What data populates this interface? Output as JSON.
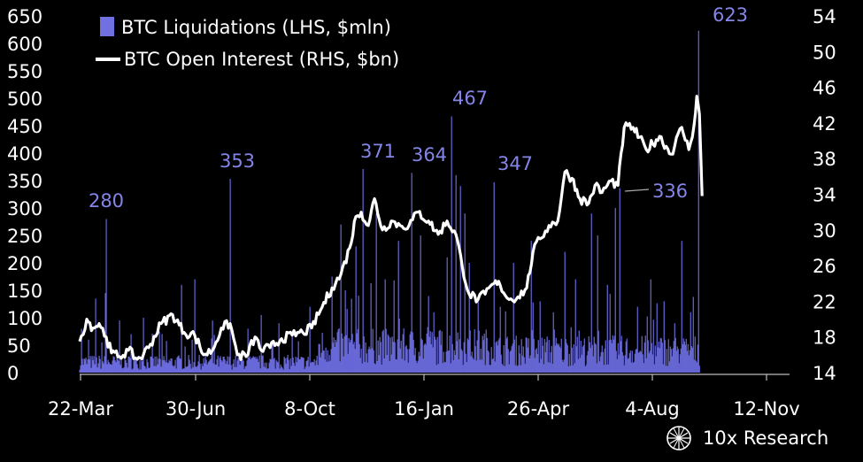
{
  "chart_data": {
    "type": "bar+line",
    "left_axis": {
      "label": "BTC Liquidations (LHS, $mln)",
      "range": [
        0,
        650
      ],
      "ticks": [
        "0",
        "50",
        "100",
        "150",
        "200",
        "250",
        "300",
        "350",
        "400",
        "450",
        "500",
        "550",
        "600",
        "650"
      ]
    },
    "right_axis": {
      "label": "BTC Open Interest (RHS, $bn)",
      "range": [
        14,
        54
      ],
      "ticks": [
        "14",
        "18",
        "22",
        "26",
        "30",
        "34",
        "38",
        "42",
        "46",
        "50",
        "54"
      ]
    },
    "x_axis": {
      "ticks": [
        "22-Mar",
        "30-Jun",
        "8-Oct",
        "16-Jan",
        "26-Apr",
        "4-Aug",
        "12-Nov"
      ],
      "day_range": [
        0,
        700
      ]
    },
    "legend": [
      {
        "label": "BTC Liquidations (LHS, $mln)",
        "color": "#7070e0",
        "kind": "bar"
      },
      {
        "label": "BTC Open Interest (RHS, $bn)",
        "color": "#ffffff",
        "kind": "line"
      }
    ],
    "annotations": [
      {
        "text": "280",
        "day": 30
      },
      {
        "text": "353",
        "day": 170
      },
      {
        "text": "371",
        "day": 320
      },
      {
        "text": "364",
        "day": 375
      },
      {
        "text": "467",
        "day": 420
      },
      {
        "text": "347",
        "day": 468
      },
      {
        "text": "336",
        "day": 610
      },
      {
        "text": "623",
        "day": 699
      }
    ],
    "liquidation_spikes": [
      {
        "day": 2,
        "value": 80
      },
      {
        "day": 10,
        "value": 60
      },
      {
        "day": 18,
        "value": 135
      },
      {
        "day": 25,
        "value": 55
      },
      {
        "day": 29,
        "value": 145
      },
      {
        "day": 30,
        "value": 280
      },
      {
        "day": 45,
        "value": 95
      },
      {
        "day": 58,
        "value": 70
      },
      {
        "day": 72,
        "value": 100
      },
      {
        "day": 90,
        "value": 75
      },
      {
        "day": 115,
        "value": 160
      },
      {
        "day": 130,
        "value": 170
      },
      {
        "day": 150,
        "value": 95
      },
      {
        "day": 170,
        "value": 353
      },
      {
        "day": 190,
        "value": 80
      },
      {
        "day": 205,
        "value": 105
      },
      {
        "day": 225,
        "value": 90
      },
      {
        "day": 240,
        "value": 75
      },
      {
        "day": 260,
        "value": 120
      },
      {
        "day": 285,
        "value": 175
      },
      {
        "day": 295,
        "value": 270
      },
      {
        "day": 300,
        "value": 150
      },
      {
        "day": 312,
        "value": 230
      },
      {
        "day": 320,
        "value": 371
      },
      {
        "day": 335,
        "value": 290
      },
      {
        "day": 345,
        "value": 170
      },
      {
        "day": 360,
        "value": 240
      },
      {
        "day": 375,
        "value": 364
      },
      {
        "day": 385,
        "value": 250
      },
      {
        "day": 400,
        "value": 110
      },
      {
        "day": 415,
        "value": 210
      },
      {
        "day": 420,
        "value": 467
      },
      {
        "day": 425,
        "value": 360
      },
      {
        "day": 430,
        "value": 340
      },
      {
        "day": 435,
        "value": 290
      },
      {
        "day": 440,
        "value": 200
      },
      {
        "day": 450,
        "value": 130
      },
      {
        "day": 468,
        "value": 347
      },
      {
        "day": 475,
        "value": 120
      },
      {
        "day": 490,
        "value": 200
      },
      {
        "day": 510,
        "value": 240
      },
      {
        "day": 520,
        "value": 130
      },
      {
        "day": 535,
        "value": 110
      },
      {
        "day": 548,
        "value": 220
      },
      {
        "day": 560,
        "value": 170
      },
      {
        "day": 578,
        "value": 290
      },
      {
        "day": 585,
        "value": 250
      },
      {
        "day": 596,
        "value": 160
      },
      {
        "day": 605,
        "value": 300
      },
      {
        "day": 610,
        "value": 336
      },
      {
        "day": 630,
        "value": 120
      },
      {
        "day": 645,
        "value": 170
      },
      {
        "day": 660,
        "value": 130
      },
      {
        "day": 672,
        "value": 90
      },
      {
        "day": 680,
        "value": 240
      },
      {
        "day": 690,
        "value": 110
      },
      {
        "day": 699,
        "value": 623
      }
    ],
    "open_interest": [
      [
        0,
        17.5
      ],
      [
        8,
        20
      ],
      [
        15,
        19
      ],
      [
        22,
        19.5
      ],
      [
        30,
        18
      ],
      [
        36,
        16.2
      ],
      [
        45,
        15.8
      ],
      [
        55,
        16.5
      ],
      [
        65,
        15.5
      ],
      [
        72,
        16
      ],
      [
        80,
        17.2
      ],
      [
        92,
        19.5
      ],
      [
        105,
        20.5
      ],
      [
        118,
        18.5
      ],
      [
        130,
        18.2
      ],
      [
        140,
        16
      ],
      [
        150,
        16.5
      ],
      [
        160,
        19
      ],
      [
        170,
        19.5
      ],
      [
        178,
        16
      ],
      [
        188,
        15.8
      ],
      [
        198,
        18
      ],
      [
        205,
        16.5
      ],
      [
        215,
        16.8
      ],
      [
        228,
        17.8
      ],
      [
        240,
        18.2
      ],
      [
        252,
        18.5
      ],
      [
        262,
        19
      ],
      [
        272,
        21
      ],
      [
        285,
        23.5
      ],
      [
        295,
        25
      ],
      [
        305,
        28
      ],
      [
        312,
        31.5
      ],
      [
        318,
        32
      ],
      [
        326,
        30.5
      ],
      [
        333,
        33.5
      ],
      [
        342,
        30
      ],
      [
        352,
        31
      ],
      [
        362,
        30.5
      ],
      [
        372,
        30.5
      ],
      [
        382,
        32
      ],
      [
        394,
        31
      ],
      [
        405,
        29.5
      ],
      [
        415,
        31
      ],
      [
        425,
        29.5
      ],
      [
        432,
        26
      ],
      [
        440,
        22.8
      ],
      [
        450,
        22.2
      ],
      [
        458,
        22.8
      ],
      [
        468,
        24
      ],
      [
        475,
        23.8
      ],
      [
        485,
        22.2
      ],
      [
        495,
        22.5
      ],
      [
        505,
        23.5
      ],
      [
        512,
        27.5
      ],
      [
        520,
        29
      ],
      [
        530,
        30.5
      ],
      [
        540,
        31
      ],
      [
        548,
        36.5
      ],
      [
        556,
        35.8
      ],
      [
        565,
        33.5
      ],
      [
        575,
        33
      ],
      [
        582,
        35
      ],
      [
        590,
        34.2
      ],
      [
        600,
        35.5
      ],
      [
        608,
        35
      ],
      [
        615,
        41.5
      ],
      [
        625,
        41.5
      ],
      [
        640,
        39
      ],
      [
        655,
        40.5
      ],
      [
        668,
        38.5
      ],
      [
        680,
        41.5
      ],
      [
        688,
        39
      ],
      [
        694,
        41.8
      ],
      [
        697,
        45
      ],
      [
        700,
        43
      ],
      [
        703,
        33.8
      ]
    ]
  }
}
